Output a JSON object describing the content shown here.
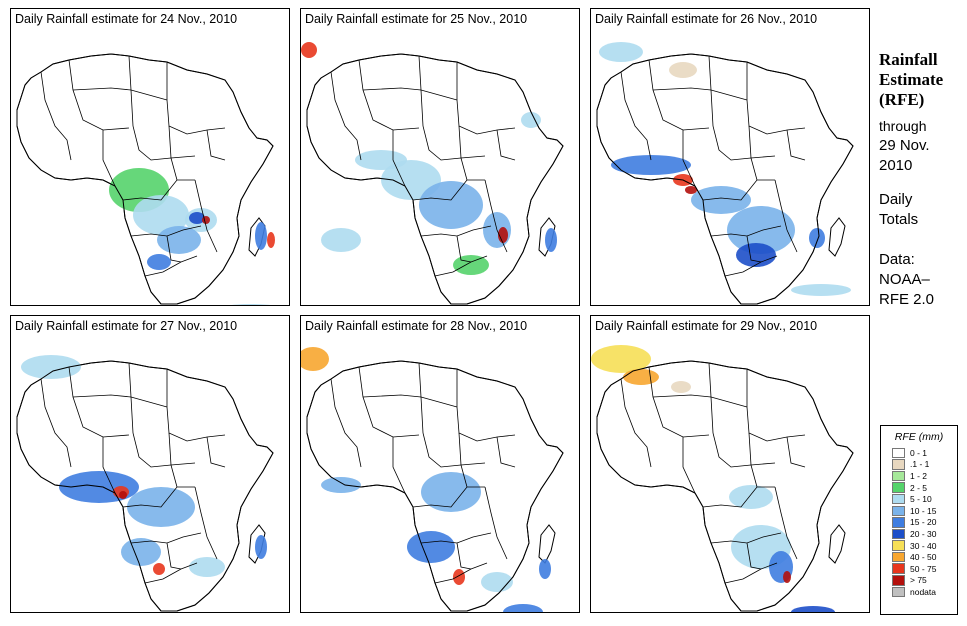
{
  "panels": [
    {
      "title": "Daily Rainfall estimate for  24 Nov., 2010"
    },
    {
      "title": "Daily Rainfall estimate for  25 Nov., 2010"
    },
    {
      "title": "Daily Rainfall estimate for  26 Nov., 2010"
    },
    {
      "title": "Daily Rainfall estimate for  27 Nov., 2010"
    },
    {
      "title": "Daily Rainfall estimate for  28 Nov., 2010"
    },
    {
      "title": "Daily Rainfall estimate for  29 Nov., 2010"
    }
  ],
  "side": {
    "title_line1": "Rainfall",
    "title_line2": "Estimate",
    "title_line3": "(RFE)",
    "through_line1": "through",
    "through_line2": "29 Nov.",
    "through_line3": "2010",
    "daily_line1": "Daily",
    "daily_line2": "Totals",
    "data_line1": "Data:",
    "data_line2": "NOAA–",
    "data_line3": "RFE 2.0"
  },
  "legend": {
    "title": "RFE (mm)",
    "items": [
      {
        "label": "0 - 1",
        "color": "#ffffff"
      },
      {
        "label": ".1 - 1",
        "color": "#e8d8c0"
      },
      {
        "label": "1 - 2",
        "color": "#a6e89a"
      },
      {
        "label": "2 - 5",
        "color": "#55d36b"
      },
      {
        "label": "5 - 10",
        "color": "#aedcf0"
      },
      {
        "label": "10 - 15",
        "color": "#7ab3ea"
      },
      {
        "label": "15 - 20",
        "color": "#3f7de0"
      },
      {
        "label": "20 - 30",
        "color": "#1d4fc9"
      },
      {
        "label": "30 - 40",
        "color": "#f6df57"
      },
      {
        "label": "40 - 50",
        "color": "#f7a630"
      },
      {
        "label": "50 - 75",
        "color": "#e8361d"
      },
      {
        "label": "> 75",
        "color": "#b3100c"
      },
      {
        "label": "nodata",
        "color": "#c0c0c0"
      }
    ]
  }
}
